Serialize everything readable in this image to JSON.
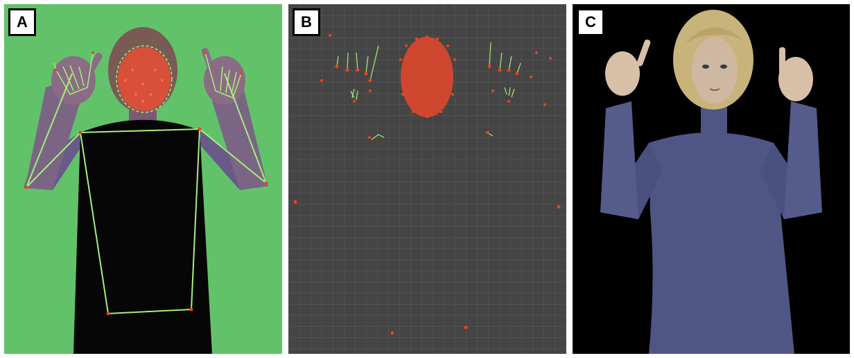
{
  "panels": [
    {
      "label": "A"
    },
    {
      "label": "B"
    },
    {
      "label": "C"
    }
  ],
  "colors": {
    "greenscreen": "#62c26a",
    "skeleton_line": "#a8f07a",
    "landmark_point": "#f0401e",
    "viewport_bg": "#454545",
    "avatar_suit": "#4f5685",
    "avatar_hair": "#c8b37a"
  }
}
